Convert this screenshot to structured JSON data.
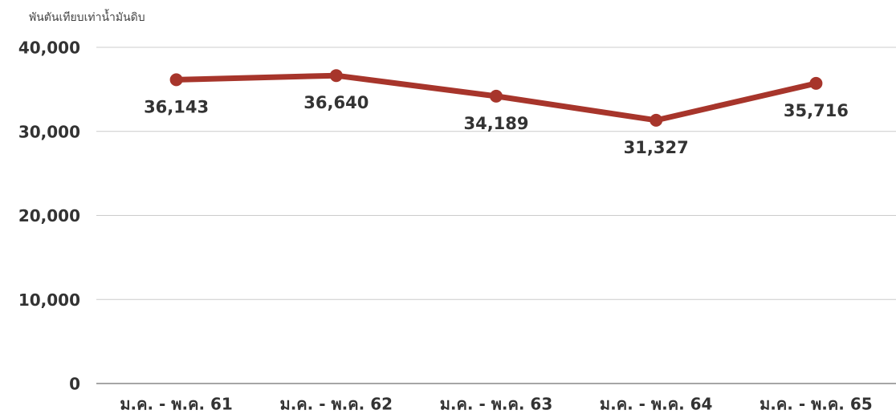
{
  "chart_data": {
    "type": "line",
    "y_label": "พันตันเทียบเท่าน้ำมันดิบ",
    "categories": [
      "ม.ค. - พ.ค. 61",
      "ม.ค. - พ.ค. 62",
      "ม.ค. - พ.ค. 63",
      "ม.ค. - พ.ค. 64",
      "ม.ค. - พ.ค. 65"
    ],
    "values": [
      36143,
      36640,
      34189,
      31327,
      35716
    ],
    "value_labels": [
      "36,143",
      "36,640",
      "34,189",
      "31,327",
      "35,716"
    ],
    "color": "#a7352b",
    "ylim": [
      0,
      40000
    ],
    "yticks": [
      0,
      {
        "value": 10000,
        "label": "10,000"
      },
      {
        "value": 20000,
        "label": "20,000"
      },
      {
        "value": 30000,
        "label": "30,000"
      },
      {
        "value": 40000,
        "label": "40,000"
      }
    ],
    "grid": true
  }
}
